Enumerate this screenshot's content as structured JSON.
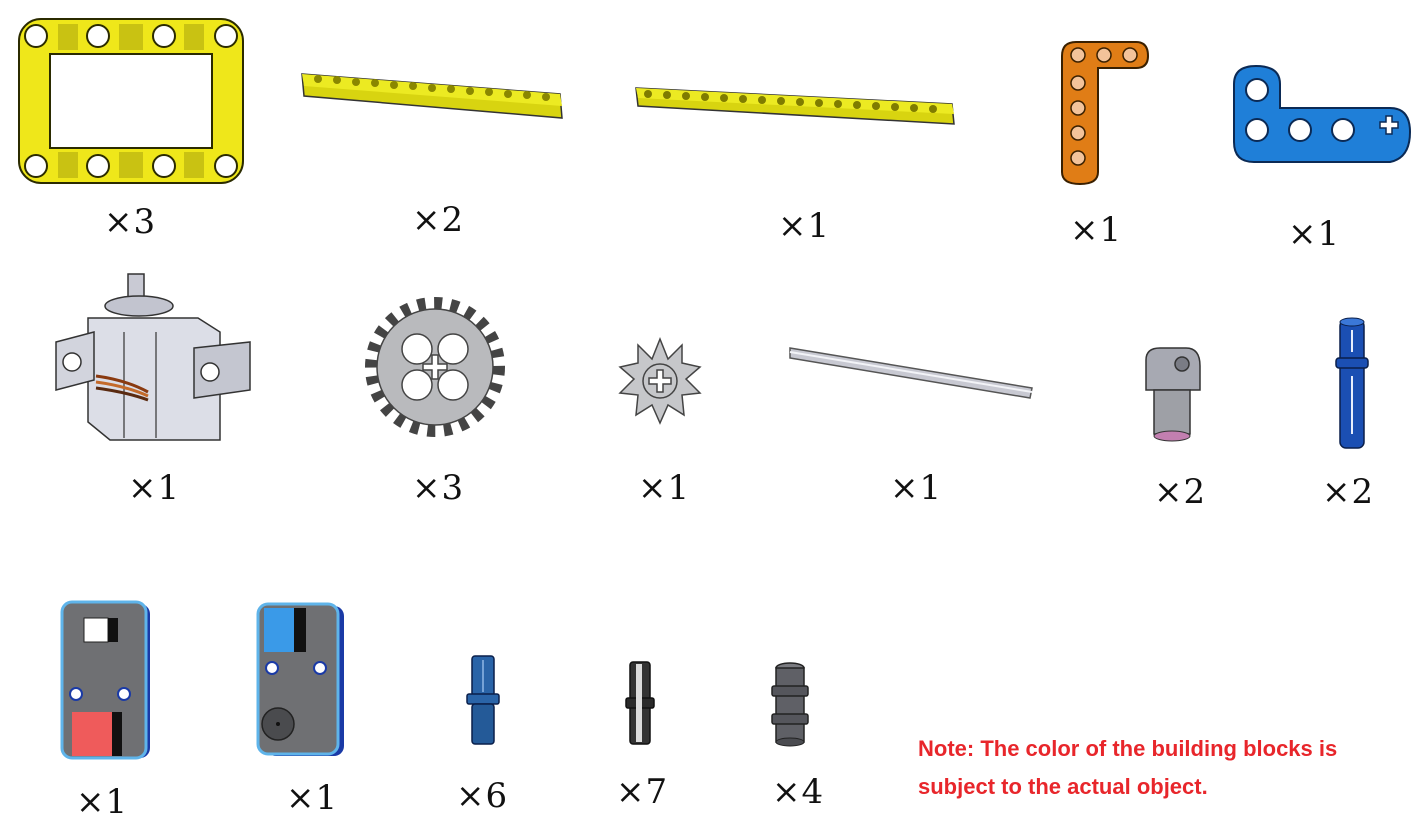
{
  "parts": [
    {
      "name": "yellow-frame",
      "color": "#f2ec1b",
      "quantity": "×3"
    },
    {
      "name": "yellow-beam-short",
      "color": "#e6e21e",
      "quantity": "×2"
    },
    {
      "name": "yellow-beam-long",
      "color": "#e6e21e",
      "quantity": "×1"
    },
    {
      "name": "orange-l-beam",
      "color": "#e07d16",
      "quantity": "×1"
    },
    {
      "name": "blue-l-beam",
      "color": "#1f7fd8",
      "quantity": "×1"
    },
    {
      "name": "servo-motor",
      "color": "#d7d9e3",
      "quantity": "×1"
    },
    {
      "name": "gear-24-tooth",
      "color": "#b9babd",
      "quantity": "×3"
    },
    {
      "name": "gear-8-tooth",
      "color": "#c6c7ca",
      "quantity": "×1"
    },
    {
      "name": "axle-rod",
      "color": "#c8c9d2",
      "quantity": "×1"
    },
    {
      "name": "axle-connector",
      "color": "#9ea0a6",
      "quantity": "×2"
    },
    {
      "name": "blue-long-pin",
      "color": "#1b4fb3",
      "quantity": "×2"
    },
    {
      "name": "light-sensor-module",
      "color": "#6f7073",
      "quantity": "×1"
    },
    {
      "name": "sound-sensor-module",
      "color": "#6f7073",
      "quantity": "×1"
    },
    {
      "name": "blue-axle-pin",
      "color": "#2a64a8",
      "quantity": "×6"
    },
    {
      "name": "black-connector-pin",
      "color": "#333333",
      "quantity": "×7"
    },
    {
      "name": "grey-bush",
      "color": "#5f6066",
      "quantity": "×4"
    }
  ],
  "note": {
    "line1": "Note: The color of the building blocks is",
    "line2": "subject to the actual object."
  }
}
